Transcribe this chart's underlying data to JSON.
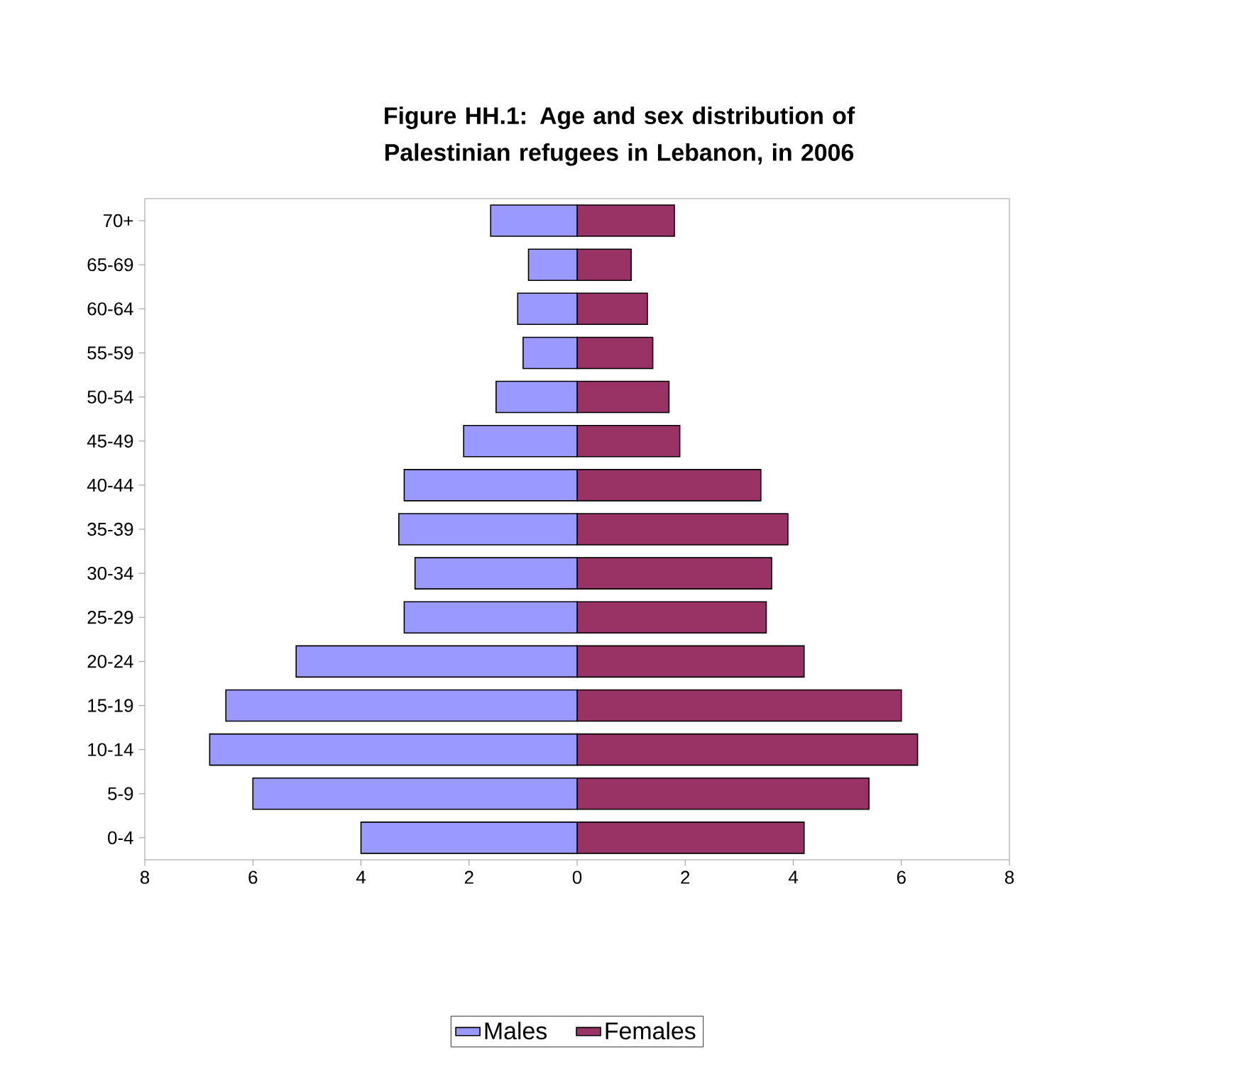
{
  "chart_data": {
    "type": "bar",
    "orientation": "horizontal",
    "title": "Figure HH.1: Age and sex distribution of Palestinian refugees in Lebanon, in 2006",
    "categories": [
      "70+",
      "65-69",
      "60-64",
      "55-59",
      "50-54",
      "45-49",
      "40-44",
      "35-39",
      "30-34",
      "25-29",
      "20-24",
      "15-19",
      "10-14",
      "5-9",
      "0-4"
    ],
    "series": [
      {
        "name": "Males",
        "color": "#9999ff",
        "values": [
          -1.6,
          -0.9,
          -1.1,
          -1.0,
          -1.5,
          -2.1,
          -3.2,
          -3.3,
          -3.0,
          -3.2,
          -5.2,
          -6.5,
          -6.8,
          -6.0,
          -4.0
        ]
      },
      {
        "name": "Females",
        "color": "#993366",
        "values": [
          1.8,
          1.0,
          1.3,
          1.4,
          1.7,
          1.9,
          3.4,
          3.9,
          3.6,
          3.5,
          4.2,
          6.0,
          6.3,
          5.4,
          4.2
        ]
      }
    ],
    "xlim": [
      -8,
      8
    ],
    "xticks": [
      {
        "value": -8,
        "label": "8"
      },
      {
        "value": -6,
        "label": "6"
      },
      {
        "value": -4,
        "label": "4"
      },
      {
        "value": -2,
        "label": "2"
      },
      0,
      2,
      4,
      6,
      8
    ],
    "legend": "bottom",
    "stacked": true
  }
}
